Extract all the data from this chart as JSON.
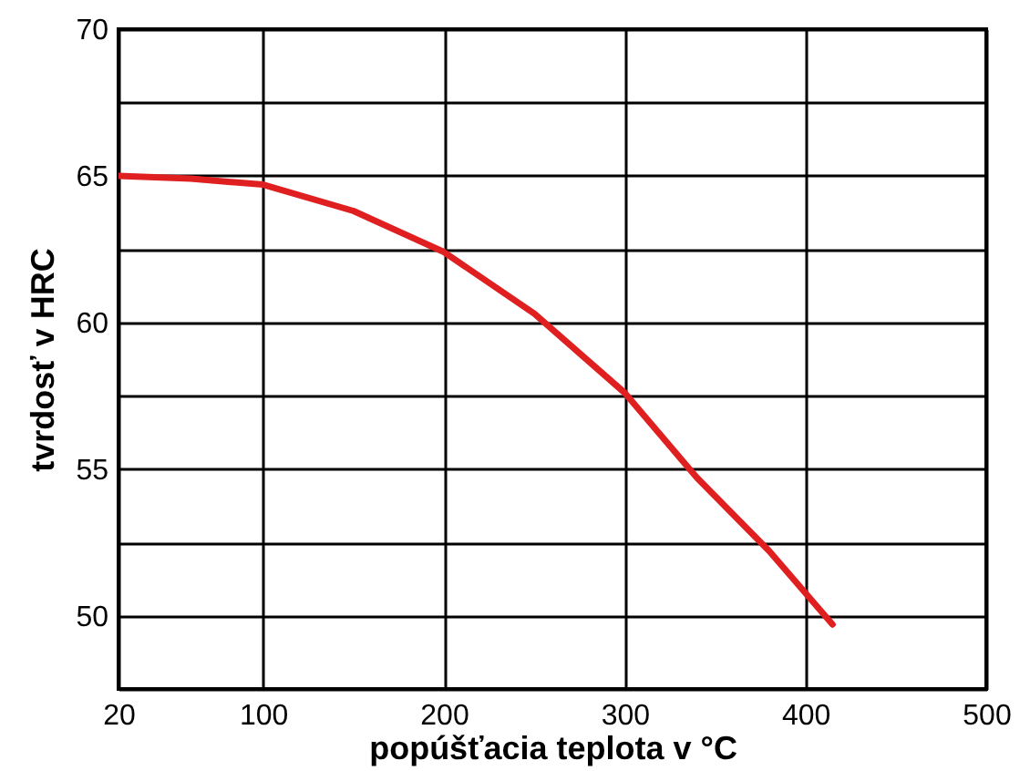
{
  "chart_data": {
    "type": "line",
    "xlabel": "popúšťacia teplota v °C",
    "ylabel": "tvrdosť v HRC",
    "x": [
      20,
      60,
      100,
      150,
      200,
      250,
      300,
      340,
      380,
      415
    ],
    "series": [
      {
        "color": "#e02020",
        "values": [
          65,
          64.9,
          64.7,
          63.8,
          62.4,
          60.3,
          57.6,
          54.7,
          52.2,
          49.7
        ]
      }
    ],
    "xlim": [
      20,
      500
    ],
    "xticks": [
      20,
      100,
      200,
      300,
      400,
      500
    ],
    "ylim": [
      47.5,
      70
    ],
    "yticks": [
      {
        "value": 47.5,
        "label": null
      },
      50,
      {
        "value": 52.5,
        "label": null
      },
      55,
      {
        "value": 57.5,
        "label": null
      },
      60,
      {
        "value": 62.5,
        "label": null
      },
      65,
      {
        "value": 67.5,
        "label": null
      },
      70
    ],
    "grid": true,
    "marker": "none",
    "line_style": "solid"
  }
}
